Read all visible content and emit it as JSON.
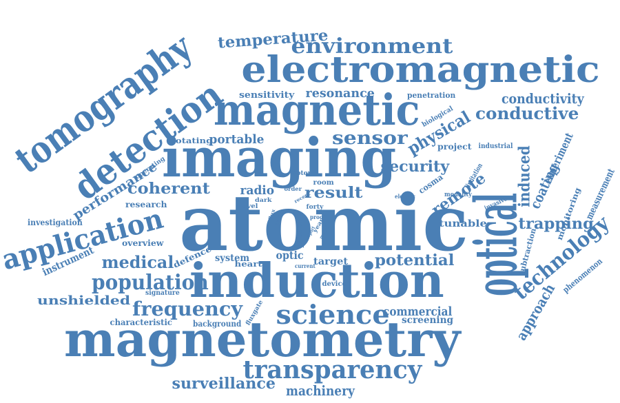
{
  "style": {
    "word_color": "#4a7fb5",
    "background": "#ffffff"
  },
  "words": [
    "atomic",
    "optical",
    "induction",
    "magnetometry",
    "imaging",
    "magnetic",
    "electromagnetic",
    "tomography",
    "detection",
    "application",
    "science",
    "transparency",
    "environment",
    "temperature",
    "frequency",
    "population",
    "medical",
    "coherent",
    "sensor",
    "security",
    "conductive",
    "conductivity",
    "technology",
    "physical",
    "potential",
    "surveillance",
    "machinery",
    "trapping",
    "result",
    "portable",
    "resonance",
    "sensitivity",
    "remote",
    "induced",
    "coating",
    "experiment",
    "measurement",
    "approach",
    "commercial",
    "unshielded",
    "screening",
    "performance",
    "research",
    "investigation",
    "overview",
    "instrument",
    "defence",
    "system",
    "heart",
    "optic",
    "target",
    "present",
    "radio",
    "characteristic",
    "background",
    "signature",
    "fluxgate",
    "device",
    "current",
    "tunable",
    "rotating",
    "penetration",
    "biological",
    "industrial",
    "project",
    "limitation",
    "cosma",
    "modality",
    "invasive",
    "monitoring",
    "subtraction",
    "phenomenon",
    "operating",
    "motor",
    "room",
    "order",
    "novel",
    "dark",
    "recent",
    "forty",
    "proof",
    "year",
    "report",
    "metal",
    "barrier",
    "flux",
    "electric"
  ]
}
